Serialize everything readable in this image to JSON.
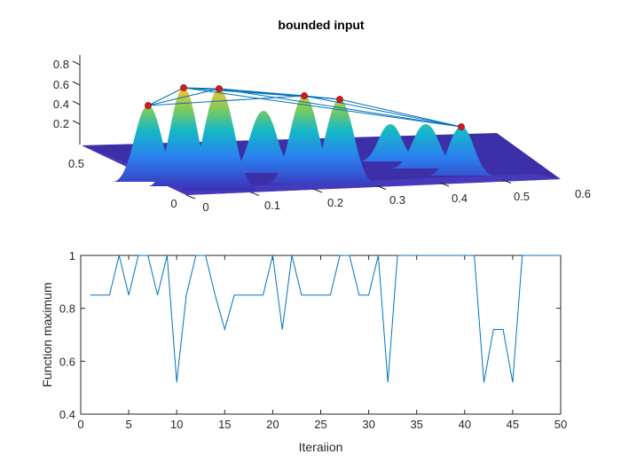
{
  "chart_data": [
    {
      "type": "surface",
      "title": "bounded input",
      "x_ticks": [
        "0",
        "0.1",
        "0.2",
        "0.3",
        "0.4",
        "0.5",
        "0.6"
      ],
      "y_ticks": [
        "0",
        "0.5"
      ],
      "z_ticks": [
        "0.2",
        "0.4",
        "0.6",
        "0.8"
      ],
      "colormap": "parula",
      "marker_color": "#d7191c",
      "line_color": "#0072bd"
    },
    {
      "type": "line",
      "title": "",
      "xlabel": "Iteraiion",
      "ylabel": "Function maximum",
      "xlim": [
        0,
        50
      ],
      "ylim": [
        0.4,
        1
      ],
      "x_ticks": [
        "0",
        "5",
        "10",
        "15",
        "20",
        "25",
        "30",
        "35",
        "40",
        "45",
        "50"
      ],
      "y_ticks": [
        "0.4",
        "0.6",
        "0.8",
        "1"
      ],
      "color": "#0072bd",
      "x": [
        1,
        2,
        3,
        4,
        5,
        6,
        7,
        8,
        9,
        10,
        11,
        12,
        13,
        14,
        15,
        16,
        17,
        18,
        19,
        20,
        21,
        22,
        23,
        24,
        25,
        26,
        27,
        28,
        29,
        30,
        31,
        32,
        33,
        34,
        35,
        36,
        37,
        38,
        39,
        40,
        41,
        42,
        43,
        44,
        45,
        46,
        47,
        48,
        49,
        50
      ],
      "y": [
        0.85,
        0.85,
        0.85,
        1,
        0.85,
        1,
        1,
        0.85,
        1,
        0.52,
        0.85,
        1,
        1,
        0.85,
        0.72,
        0.85,
        0.85,
        0.85,
        0.85,
        1,
        0.72,
        1,
        0.85,
        0.85,
        0.85,
        0.85,
        1,
        1,
        0.85,
        0.85,
        1,
        0.52,
        1,
        1,
        1,
        1,
        1,
        1,
        1,
        1,
        1,
        0.52,
        0.72,
        0.72,
        0.52,
        1,
        1,
        1,
        1,
        1
      ]
    }
  ]
}
